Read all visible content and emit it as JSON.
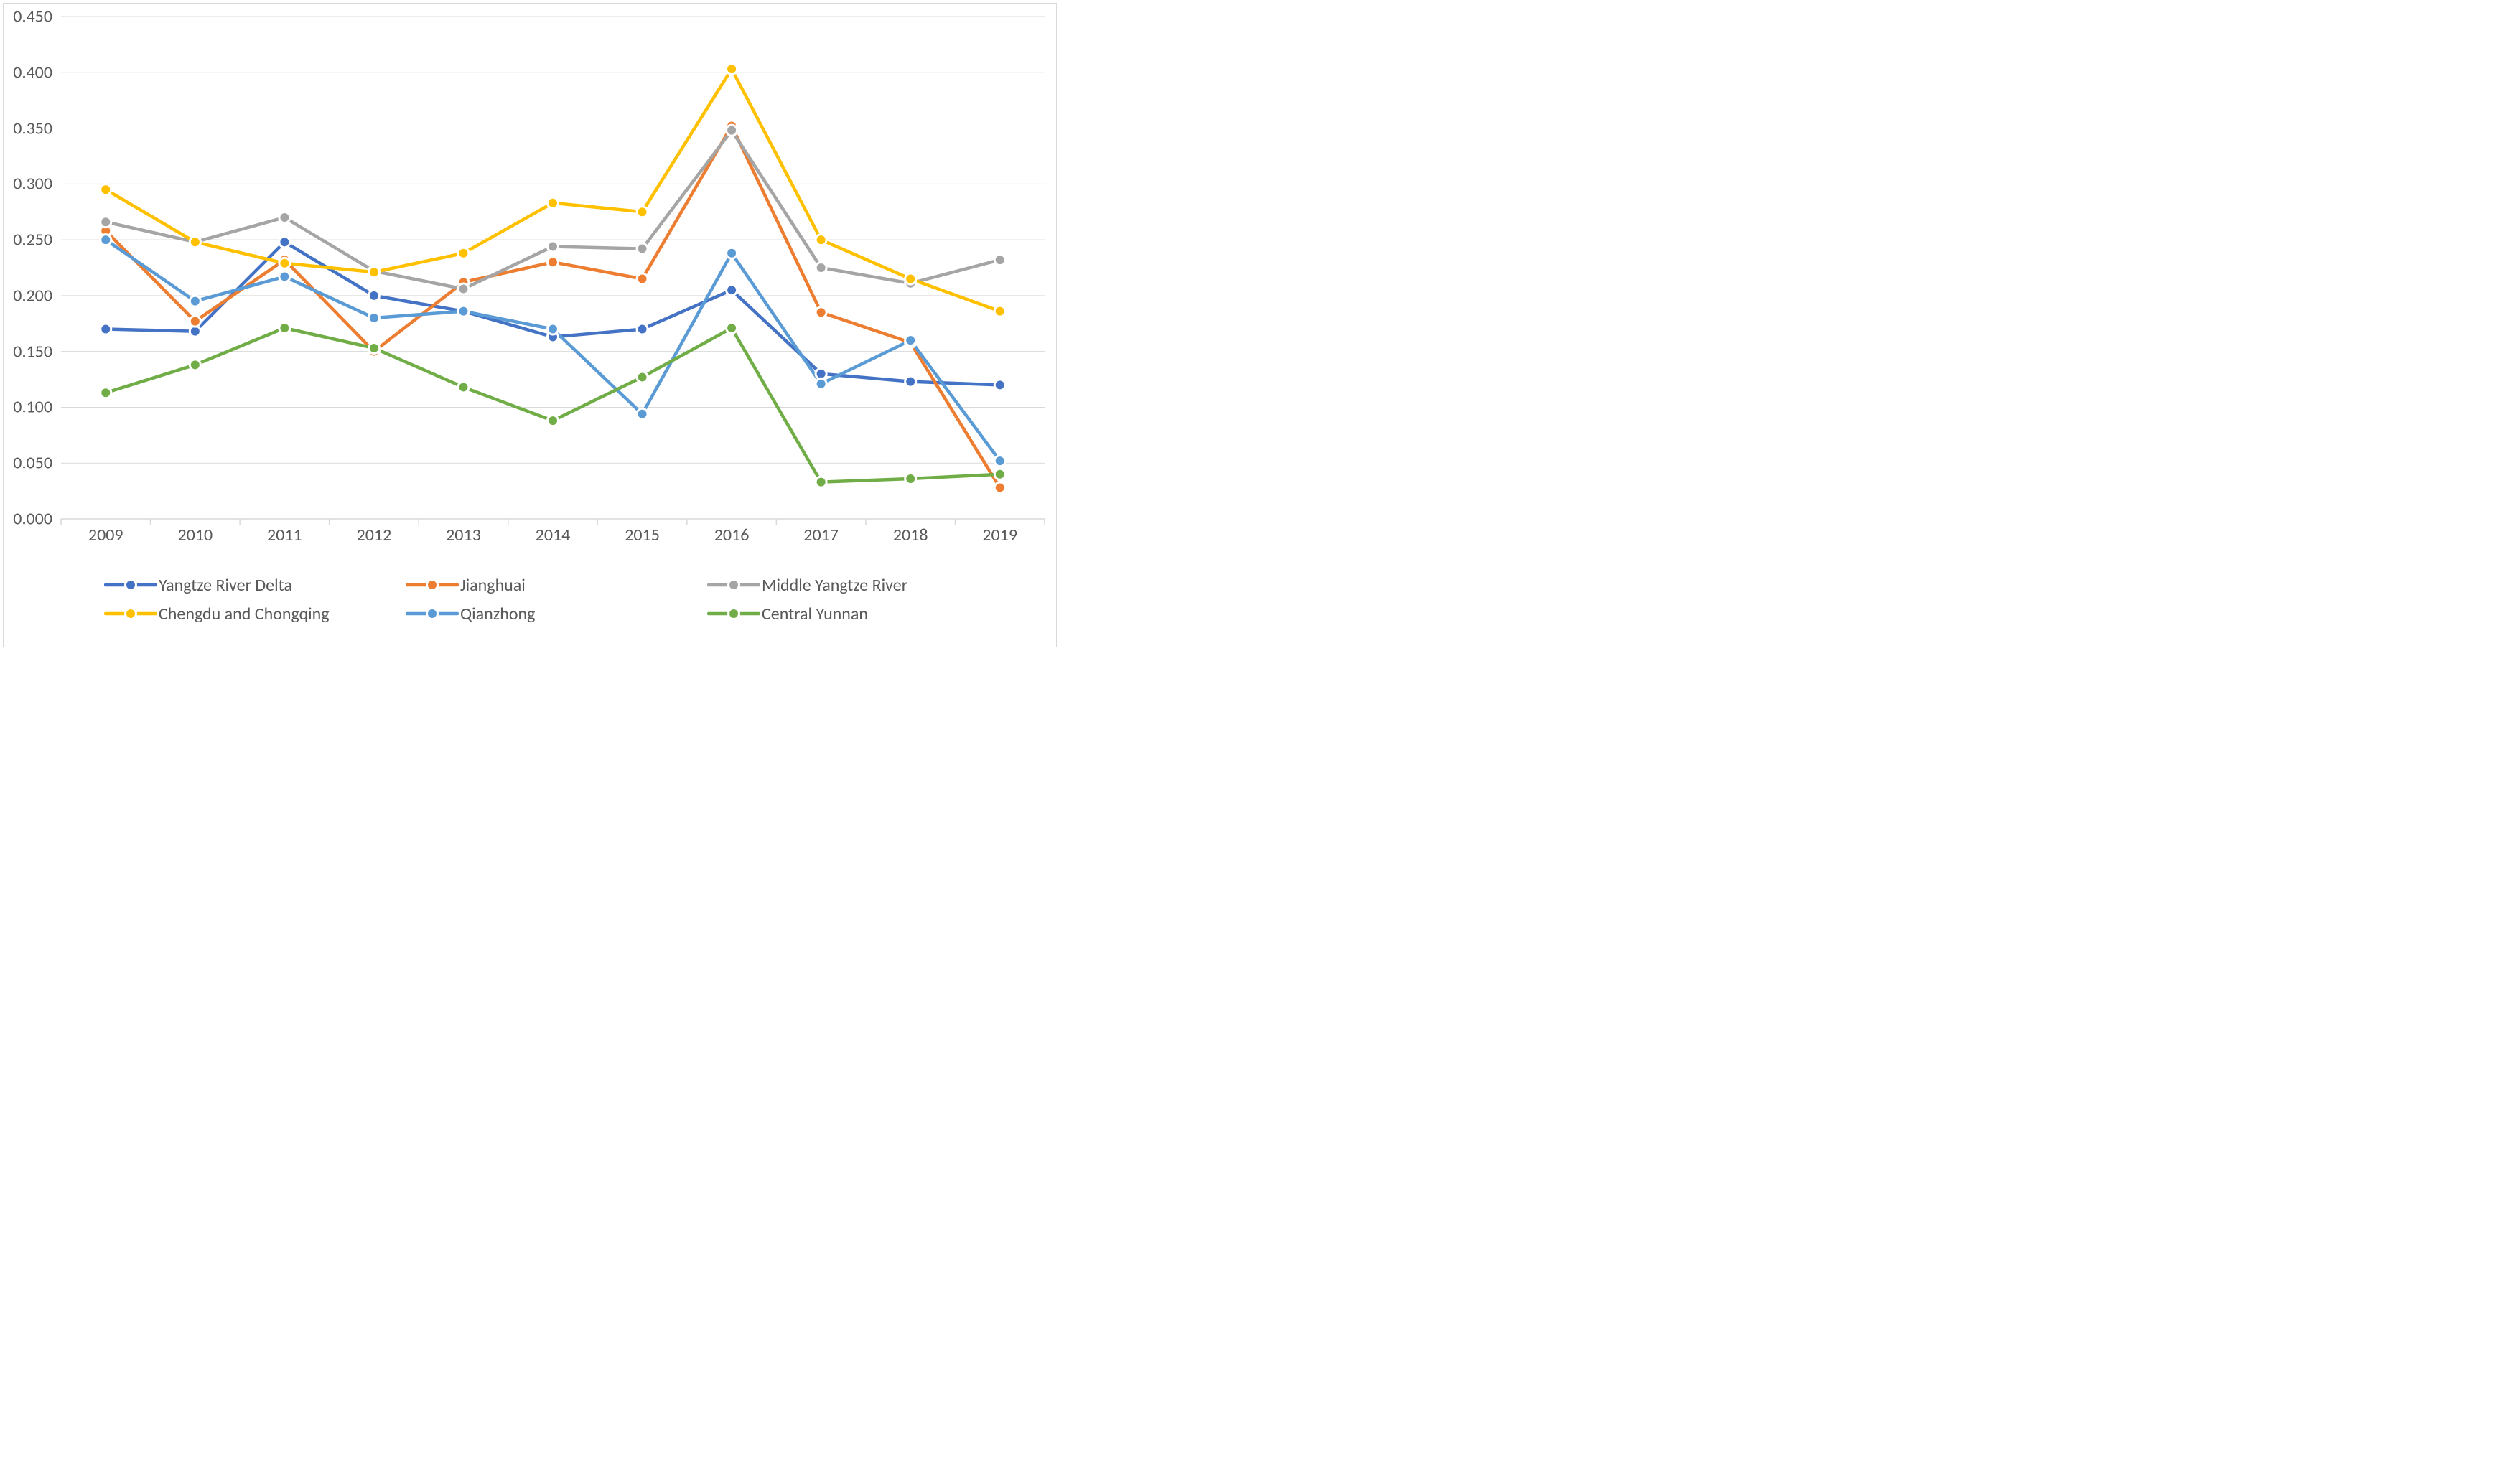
{
  "chart": {
    "type": "line",
    "background_color": "#ffffff",
    "border_color": "#d9d9d9",
    "grid_color": "#d9d9d9",
    "axis_line_color": "#d9d9d9",
    "tick_label_color": "#595959",
    "label_fontsize": 24,
    "line_width": 4.5,
    "marker_radius": 7.5,
    "marker_border_width": 3,
    "ylim": [
      0.0,
      0.45
    ],
    "ytick_step": 0.05,
    "y_decimals": 3,
    "categories": [
      "2009",
      "2010",
      "2011",
      "2012",
      "2013",
      "2014",
      "2015",
      "2016",
      "2017",
      "2018",
      "2019"
    ],
    "series": [
      {
        "name": "Yangtze River Delta",
        "color": "#4472c4",
        "marker_fill": "#4472c4",
        "values": [
          0.17,
          0.168,
          0.248,
          0.2,
          0.186,
          0.163,
          0.17,
          0.205,
          0.13,
          0.123,
          0.12
        ]
      },
      {
        "name": "Jianghuai",
        "color": "#ed7d31",
        "marker_fill": "#ed7d31",
        "values": [
          0.258,
          0.177,
          0.232,
          0.15,
          0.212,
          0.23,
          0.215,
          0.352,
          0.185,
          0.158,
          0.028
        ]
      },
      {
        "name": "Middle Yangtze River",
        "color": "#a5a5a5",
        "marker_fill": "#a5a5a5",
        "values": [
          0.266,
          0.248,
          0.27,
          0.222,
          0.206,
          0.244,
          0.242,
          0.348,
          0.225,
          0.211,
          0.232
        ]
      },
      {
        "name": "Chengdu and Chongqing",
        "color": "#ffc000",
        "marker_fill": "#ffc000",
        "values": [
          0.295,
          0.248,
          0.229,
          0.221,
          0.238,
          0.283,
          0.275,
          0.403,
          0.25,
          0.215,
          0.186
        ]
      },
      {
        "name": "Qianzhong",
        "color": "#5b9bd5",
        "marker_fill": "#5b9bd5",
        "values": [
          0.25,
          0.195,
          0.217,
          0.18,
          0.186,
          0.17,
          0.094,
          0.238,
          0.121,
          0.16,
          0.052
        ]
      },
      {
        "name": "Central Yunnan",
        "color": "#70ad47",
        "marker_fill": "#70ad47",
        "values": [
          0.113,
          0.138,
          0.171,
          0.153,
          0.118,
          0.088,
          0.127,
          0.171,
          0.033,
          0.036,
          0.04
        ]
      }
    ],
    "legend": {
      "position": "bottom",
      "items_per_row": 3
    }
  }
}
